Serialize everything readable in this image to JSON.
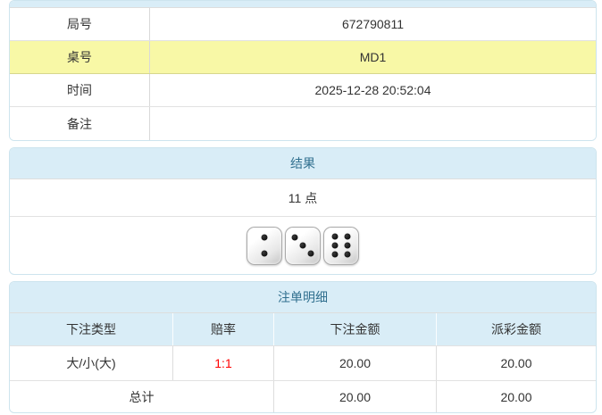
{
  "colors": {
    "section_header_bg": "#d9edf7",
    "section_header_text": "#31708f",
    "highlight_row_bg": "#f8f8a6",
    "odds_text": "#ff0000"
  },
  "info_table": {
    "rows": [
      {
        "label": "局号",
        "value": "672790811",
        "highlight": false
      },
      {
        "label": "桌号",
        "value": "MD1",
        "highlight": true
      },
      {
        "label": "时间",
        "value": "2025-12-28 20:52:04",
        "highlight": false
      },
      {
        "label": "备注",
        "value": "",
        "highlight": false
      }
    ]
  },
  "result_section": {
    "title": "结果",
    "points": "11 点",
    "dice": [
      2,
      3,
      6
    ]
  },
  "bets_section": {
    "title": "注单明细",
    "columns": [
      "下注类型",
      "赔率",
      "下注金额",
      "派彩金额"
    ],
    "rows": [
      {
        "bet_type": "大/小(大)",
        "odds": "1:1",
        "bet_amount": "20.00",
        "payout_amount": "20.00"
      }
    ],
    "total_label": "总计",
    "total_bet_amount": "20.00",
    "total_payout_amount": "20.00"
  }
}
